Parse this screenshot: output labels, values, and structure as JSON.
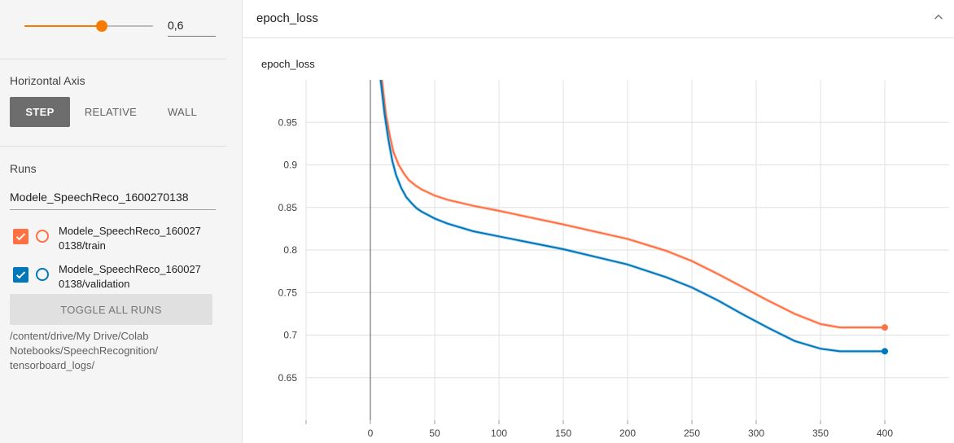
{
  "sidebar": {
    "smoothing": {
      "value_text": "0,6",
      "fraction": 0.6
    },
    "horizontal_axis": {
      "title": "Horizontal Axis",
      "options": [
        "STEP",
        "RELATIVE",
        "WALL"
      ],
      "selected": "STEP"
    },
    "runs": {
      "title": "Runs",
      "filter_value": "Modele_SpeechReco_1600270138",
      "items": [
        {
          "label_line1": "Modele_SpeechReco_160027",
          "label_line2": "0138/train",
          "color": "#ff7043",
          "checked": true
        },
        {
          "label_line1": "Modele_SpeechReco_160027",
          "label_line2": "0138/validation",
          "color": "#0077bb",
          "checked": true
        }
      ],
      "toggle_label": "TOGGLE ALL RUNS",
      "logdir_line1": "/content/drive/My Drive/Colab",
      "logdir_line2": "Notebooks/SpeechRecognition/",
      "logdir_line3": "tensorboard_logs/"
    }
  },
  "card": {
    "title": "epoch_loss",
    "icon": "chevron-up-icon"
  },
  "chart_data": {
    "type": "line",
    "title": "epoch_loss",
    "xlabel": "",
    "ylabel": "",
    "x_ticks": [
      0,
      50,
      100,
      150,
      200,
      250,
      300,
      350,
      400
    ],
    "y_ticks": [
      0.65,
      0.7,
      0.75,
      0.8,
      0.85,
      0.9,
      0.95
    ],
    "y_tick_labels": [
      "0.65",
      "0.7",
      "0.75",
      "0.8",
      "0.85",
      "0.9",
      "0.95"
    ],
    "xlim": [
      -50,
      450
    ],
    "ylim": [
      0.6,
      1.0
    ],
    "grid": true,
    "series": [
      {
        "color": "#ff7043",
        "x": [
          9,
          12,
          15,
          18,
          22,
          26,
          30,
          35,
          40,
          50,
          60,
          80,
          100,
          150,
          200,
          230,
          250,
          270,
          290,
          310,
          330,
          350,
          365,
          380,
          400
        ],
        "y": [
          1.0,
          0.96,
          0.935,
          0.915,
          0.9,
          0.89,
          0.882,
          0.876,
          0.871,
          0.864,
          0.859,
          0.852,
          0.846,
          0.83,
          0.813,
          0.799,
          0.787,
          0.772,
          0.756,
          0.74,
          0.725,
          0.713,
          0.709,
          0.709,
          0.709
        ]
      },
      {
        "color": "#0077bb",
        "x": [
          8,
          11,
          14,
          17,
          20,
          24,
          28,
          32,
          36,
          40,
          50,
          60,
          80,
          100,
          150,
          200,
          230,
          250,
          270,
          290,
          310,
          330,
          350,
          365,
          380,
          400
        ],
        "y": [
          1.0,
          0.96,
          0.93,
          0.905,
          0.888,
          0.873,
          0.862,
          0.855,
          0.849,
          0.845,
          0.837,
          0.831,
          0.822,
          0.816,
          0.801,
          0.783,
          0.768,
          0.756,
          0.741,
          0.724,
          0.708,
          0.693,
          0.684,
          0.681,
          0.681,
          0.681
        ]
      }
    ]
  }
}
